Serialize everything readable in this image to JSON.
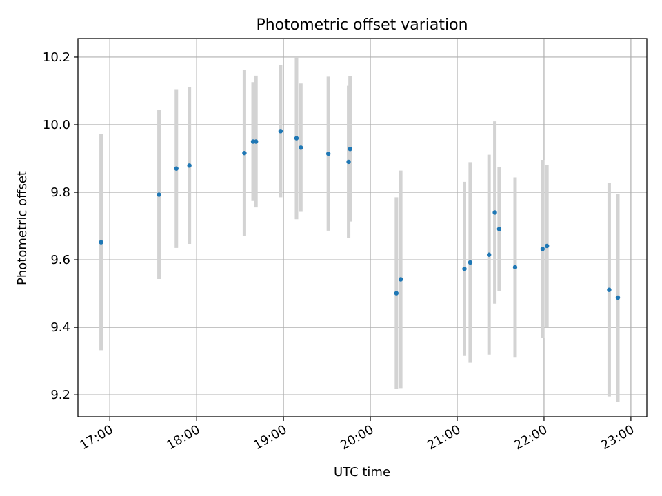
{
  "chart_data": {
    "type": "scatter",
    "title": "Photometric offset variation",
    "xlabel": "UTC time",
    "ylabel": "Photometric offset",
    "xlim": [
      "16:38",
      "23:11"
    ],
    "ylim": [
      9.135,
      10.255
    ],
    "xticks": [
      "17:00",
      "18:00",
      "19:00",
      "20:00",
      "21:00",
      "22:00",
      "23:00"
    ],
    "yticks": [
      "9.2",
      "9.4",
      "9.6",
      "9.8",
      "10.0",
      "10.2"
    ],
    "grid": true,
    "colors": {
      "point": "#1f77b4",
      "errorbar": "#d3d3d3",
      "grid": "#b0b0b0",
      "axis": "#000000"
    },
    "points": [
      {
        "x": "16:54",
        "y": 9.652,
        "err": 0.32
      },
      {
        "x": "17:34",
        "y": 9.793,
        "err": 0.25
      },
      {
        "x": "17:46",
        "y": 9.87,
        "err": 0.235
      },
      {
        "x": "17:55",
        "y": 9.879,
        "err": 0.232
      },
      {
        "x": "18:33",
        "y": 9.916,
        "err": 0.246
      },
      {
        "x": "18:39",
        "y": 9.95,
        "err": 0.176
      },
      {
        "x": "18:41",
        "y": 9.95,
        "err": 0.195
      },
      {
        "x": "18:58",
        "y": 9.981,
        "err": 0.196
      },
      {
        "x": "19:09",
        "y": 9.96,
        "err": 0.24
      },
      {
        "x": "19:12",
        "y": 9.932,
        "err": 0.19
      },
      {
        "x": "19:31",
        "y": 9.914,
        "err": 0.228
      },
      {
        "x": "19:45",
        "y": 9.89,
        "err": 0.225
      },
      {
        "x": "19:46",
        "y": 9.928,
        "err": 0.215
      },
      {
        "x": "20:18",
        "y": 9.501,
        "err": 0.284
      },
      {
        "x": "20:21",
        "y": 9.542,
        "err": 0.322
      },
      {
        "x": "21:05",
        "y": 9.573,
        "err": 0.258
      },
      {
        "x": "21:09",
        "y": 9.592,
        "err": 0.297
      },
      {
        "x": "21:22",
        "y": 9.615,
        "err": 0.296
      },
      {
        "x": "21:26",
        "y": 9.74,
        "err": 0.27
      },
      {
        "x": "21:29",
        "y": 9.691,
        "err": 0.183
      },
      {
        "x": "21:40",
        "y": 9.578,
        "err": 0.266
      },
      {
        "x": "21:59",
        "y": 9.632,
        "err": 0.264
      },
      {
        "x": "22:02",
        "y": 9.641,
        "err": 0.24
      },
      {
        "x": "22:45",
        "y": 9.511,
        "err": 0.316
      },
      {
        "x": "22:51",
        "y": 9.488,
        "err": 0.308
      }
    ]
  }
}
